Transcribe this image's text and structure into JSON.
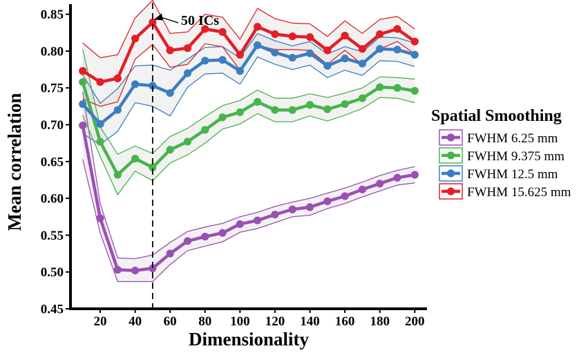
{
  "chart_data": {
    "type": "line",
    "xlabel": "Dimensionality",
    "ylabel": "Mean correlation",
    "xlim": [
      3,
      207
    ],
    "ylim": [
      0.45,
      0.86
    ],
    "xticks": [
      20,
      40,
      60,
      80,
      100,
      120,
      140,
      160,
      180,
      200
    ],
    "yticks": [
      0.45,
      0.5,
      0.55,
      0.6,
      0.65,
      0.7,
      0.75,
      0.8,
      0.85
    ],
    "x": [
      10,
      20,
      30,
      40,
      50,
      60,
      70,
      80,
      90,
      100,
      110,
      120,
      130,
      140,
      150,
      160,
      170,
      180,
      190,
      200
    ],
    "legend": {
      "title": "Spatial Smoothing",
      "position": "right"
    },
    "annotation": {
      "text": "50 ICs",
      "x": 50,
      "y": 0.839
    },
    "vline": {
      "x": 50,
      "style": "dashed"
    },
    "series": [
      {
        "name": "FWHM 6.25 mm",
        "color": "#9b4fb3",
        "values": [
          0.699,
          0.573,
          0.503,
          0.502,
          0.505,
          0.525,
          0.542,
          0.548,
          0.553,
          0.565,
          0.57,
          0.578,
          0.585,
          0.588,
          0.596,
          0.603,
          0.612,
          0.62,
          0.628,
          0.632
        ],
        "upper": [
          0.745,
          0.593,
          0.519,
          0.518,
          0.523,
          0.54,
          0.555,
          0.561,
          0.566,
          0.575,
          0.581,
          0.589,
          0.595,
          0.6,
          0.607,
          0.614,
          0.622,
          0.631,
          0.638,
          0.643
        ],
        "lower": [
          0.653,
          0.553,
          0.487,
          0.487,
          0.487,
          0.51,
          0.529,
          0.535,
          0.541,
          0.554,
          0.559,
          0.567,
          0.575,
          0.577,
          0.586,
          0.593,
          0.602,
          0.61,
          0.618,
          0.621
        ]
      },
      {
        "name": "FWHM 9.375 mm",
        "color": "#46b549",
        "values": [
          0.758,
          0.677,
          0.632,
          0.654,
          0.642,
          0.666,
          0.677,
          0.693,
          0.71,
          0.717,
          0.731,
          0.72,
          0.72,
          0.727,
          0.721,
          0.728,
          0.736,
          0.751,
          0.75,
          0.746
        ],
        "upper": [
          0.803,
          0.697,
          0.66,
          0.671,
          0.661,
          0.684,
          0.695,
          0.711,
          0.726,
          0.733,
          0.747,
          0.736,
          0.736,
          0.742,
          0.737,
          0.743,
          0.75,
          0.765,
          0.764,
          0.762
        ],
        "lower": [
          0.713,
          0.657,
          0.605,
          0.637,
          0.624,
          0.648,
          0.659,
          0.675,
          0.694,
          0.701,
          0.715,
          0.704,
          0.704,
          0.712,
          0.705,
          0.713,
          0.722,
          0.737,
          0.736,
          0.73
        ]
      },
      {
        "name": "FWHM 12.5 mm",
        "color": "#3b7ec2",
        "values": [
          0.728,
          0.701,
          0.72,
          0.755,
          0.753,
          0.743,
          0.77,
          0.787,
          0.788,
          0.773,
          0.808,
          0.798,
          0.791,
          0.797,
          0.78,
          0.79,
          0.783,
          0.803,
          0.802,
          0.795
        ],
        "upper": [
          0.768,
          0.729,
          0.749,
          0.78,
          0.781,
          0.774,
          0.789,
          0.805,
          0.806,
          0.791,
          0.824,
          0.814,
          0.807,
          0.813,
          0.796,
          0.806,
          0.799,
          0.819,
          0.818,
          0.811
        ],
        "lower": [
          0.688,
          0.673,
          0.691,
          0.73,
          0.725,
          0.712,
          0.751,
          0.769,
          0.77,
          0.755,
          0.792,
          0.782,
          0.775,
          0.781,
          0.764,
          0.774,
          0.767,
          0.787,
          0.786,
          0.779
        ]
      },
      {
        "name": "FWHM 15.625 mm",
        "color": "#e41e26",
        "values": [
          0.773,
          0.758,
          0.763,
          0.817,
          0.839,
          0.801,
          0.804,
          0.83,
          0.826,
          0.795,
          0.833,
          0.823,
          0.82,
          0.819,
          0.801,
          0.821,
          0.803,
          0.823,
          0.83,
          0.813
        ],
        "upper": [
          0.811,
          0.791,
          0.795,
          0.845,
          0.869,
          0.824,
          0.826,
          0.85,
          0.846,
          0.816,
          0.858,
          0.844,
          0.838,
          0.837,
          0.82,
          0.841,
          0.824,
          0.843,
          0.847,
          0.83
        ],
        "lower": [
          0.735,
          0.725,
          0.731,
          0.789,
          0.809,
          0.778,
          0.782,
          0.81,
          0.806,
          0.774,
          0.808,
          0.802,
          0.802,
          0.801,
          0.782,
          0.801,
          0.782,
          0.803,
          0.813,
          0.796
        ]
      }
    ]
  }
}
